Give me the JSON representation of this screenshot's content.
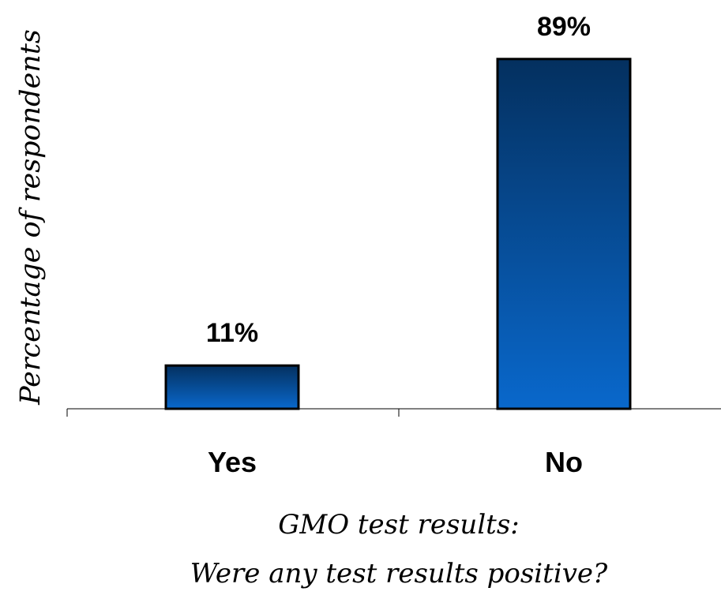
{
  "chart_data": {
    "type": "bar",
    "categories": [
      "Yes",
      "No"
    ],
    "values": [
      11,
      89
    ],
    "data_labels": [
      "11%",
      "89%"
    ],
    "title": "",
    "ylabel": "Percentage of respondents",
    "xlabel_lines": [
      "GMO test results:",
      "Were any test results positive?"
    ],
    "ylim": [
      0,
      100
    ],
    "grid": false,
    "legend": "none",
    "colors": {
      "bar_top": "#04305f",
      "bar_bottom": "#0968cc",
      "bar_outline": "#000000",
      "axis": "#000000"
    }
  }
}
